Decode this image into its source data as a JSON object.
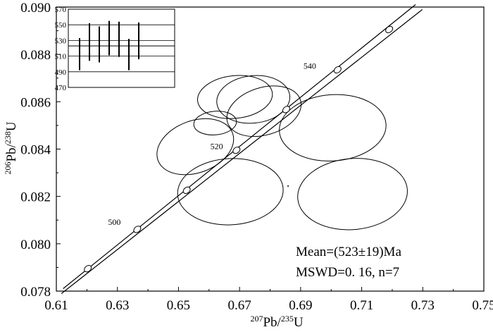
{
  "chart_data": {
    "type": "scatter",
    "subtype": "U-Pb concordia diagram",
    "x_axis": {
      "label_sup_a": "207",
      "label_mid": "Pb/",
      "label_sup_b": "235",
      "label_end": "U",
      "range": [
        0.61,
        0.75
      ],
      "ticks": [
        "0.61",
        "0.63",
        "0.65",
        "0.67",
        "0.69",
        "0.71",
        "0.73",
        "0.75"
      ]
    },
    "y_axis": {
      "label_sup_a": "206",
      "label_mid": "Pb/",
      "label_sup_b": "238",
      "label_end": "U",
      "range": [
        0.078,
        0.09
      ],
      "ticks": [
        "0.078",
        "0.080",
        "0.082",
        "0.084",
        "0.086",
        "0.088",
        "0.090"
      ]
    },
    "concordia": {
      "age_points": [
        {
          "age": 490,
          "x": 0.6203,
          "y": 0.07895
        },
        {
          "age": 500,
          "x": 0.6365,
          "y": 0.08061
        },
        {
          "age": 510,
          "x": 0.6527,
          "y": 0.08226
        },
        {
          "age": 520,
          "x": 0.669,
          "y": 0.08395
        },
        {
          "age": 530,
          "x": 0.6853,
          "y": 0.08567
        },
        {
          "age": 540,
          "x": 0.7021,
          "y": 0.08735
        },
        {
          "age": 550,
          "x": 0.719,
          "y": 0.08905
        }
      ],
      "age_labels": [
        {
          "text": "500",
          "x": 0.629,
          "y": 0.0808
        },
        {
          "text": "520",
          "x": 0.6625,
          "y": 0.084
        },
        {
          "text": "540",
          "x": 0.693,
          "y": 0.0874
        }
      ]
    },
    "error_ellipses": [
      {
        "cx": 0.6685,
        "cy": 0.0862,
        "rx": 0.0123,
        "ry": 0.0009,
        "angle_deg": 6
      },
      {
        "cx": 0.6745,
        "cy": 0.0861,
        "rx": 0.012,
        "ry": 0.001,
        "angle_deg": 6
      },
      {
        "cx": 0.662,
        "cy": 0.0851,
        "rx": 0.007,
        "ry": 0.0005,
        "angle_deg": 5
      },
      {
        "cx": 0.6555,
        "cy": 0.0841,
        "rx": 0.013,
        "ry": 0.0011,
        "angle_deg": 20
      },
      {
        "cx": 0.678,
        "cy": 0.0856,
        "rx": 0.0125,
        "ry": 0.001,
        "angle_deg": 17
      },
      {
        "cx": 0.7005,
        "cy": 0.0849,
        "rx": 0.0175,
        "ry": 0.0014,
        "angle_deg": 4
      },
      {
        "cx": 0.667,
        "cy": 0.0822,
        "rx": 0.0173,
        "ry": 0.0014,
        "angle_deg": 3
      },
      {
        "cx": 0.707,
        "cy": 0.0821,
        "rx": 0.018,
        "ry": 0.0015,
        "angle_deg": 5
      }
    ],
    "annotation": {
      "mean": "Mean=(523±19)Ma",
      "mswd": "MSWD=0. 16, n=7"
    },
    "inset": {
      "type": "weighted mean age bars",
      "range": [
        470,
        570
      ],
      "ticks": [
        "470",
        "490",
        "510",
        "530",
        "550",
        "570"
      ],
      "mean_line": 523,
      "bars": [
        {
          "low": 492,
          "high": 533
        },
        {
          "low": 504,
          "high": 552
        },
        {
          "low": 502,
          "high": 548
        },
        {
          "low": 511,
          "high": 555
        },
        {
          "low": 509,
          "high": 554
        },
        {
          "low": 492,
          "high": 532
        },
        {
          "low": 506,
          "high": 553
        }
      ]
    }
  }
}
